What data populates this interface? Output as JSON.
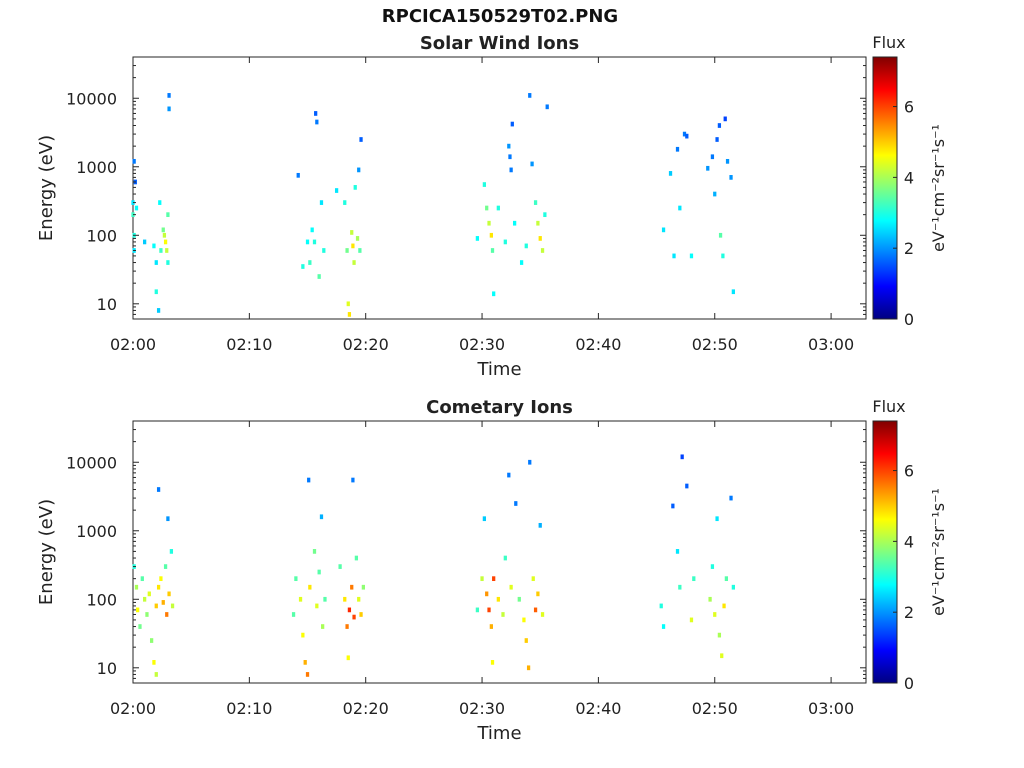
{
  "window": {
    "title": "RPCICA150529T02.PNG"
  },
  "colormap": [
    "#000080",
    "#0000ff",
    "#0080ff",
    "#00ffff",
    "#80ff80",
    "#ffff00",
    "#ff8000",
    "#ff0000",
    "#800000"
  ],
  "chart_data": [
    {
      "type": "heatmap",
      "title": "Solar Wind Ions",
      "xlabel": "Time",
      "ylabel": "Energy (eV)",
      "x_ticks": [
        "02:00",
        "02:10",
        "02:20",
        "02:30",
        "02:40",
        "02:50",
        "03:00"
      ],
      "xlim_minutes": [
        0,
        63
      ],
      "yscale": "log",
      "ylim": [
        6,
        40000
      ],
      "y_ticks": [
        "10",
        "100",
        "1000",
        "10000"
      ],
      "colorbar": {
        "title": "Flux",
        "unit_label": "eV⁻¹cm⁻²sr⁻¹s⁻¹",
        "range": [
          0,
          7.4
        ],
        "ticks": [
          "0",
          "2",
          "4",
          "6"
        ]
      },
      "cells": [
        [
          0.0,
          300,
          2.6
        ],
        [
          0.0,
          200,
          3.2
        ],
        [
          0.1,
          100,
          3.0
        ],
        [
          0.1,
          60,
          2.6
        ],
        [
          0.1,
          1200,
          1.8
        ],
        [
          0.2,
          600,
          1.6
        ],
        [
          0.3,
          250,
          2.8
        ],
        [
          1.0,
          80,
          2.4
        ],
        [
          1.8,
          70,
          2.8
        ],
        [
          2.0,
          40,
          2.6
        ],
        [
          2.0,
          15,
          3.0
        ],
        [
          2.2,
          8,
          2.4
        ],
        [
          2.3,
          300,
          2.8
        ],
        [
          2.4,
          60,
          3.2
        ],
        [
          2.6,
          120,
          3.6
        ],
        [
          2.7,
          100,
          4.2
        ],
        [
          2.8,
          80,
          4.6
        ],
        [
          2.9,
          60,
          4.2
        ],
        [
          3.0,
          200,
          3.4
        ],
        [
          3.0,
          40,
          3.0
        ],
        [
          3.1,
          11000,
          1.8
        ],
        [
          3.1,
          7000,
          2.0
        ],
        [
          14.2,
          750,
          1.8
        ],
        [
          14.6,
          35,
          3.0
        ],
        [
          15.0,
          80,
          2.8
        ],
        [
          15.2,
          40,
          3.2
        ],
        [
          15.4,
          120,
          2.8
        ],
        [
          15.6,
          80,
          3.0
        ],
        [
          15.7,
          6000,
          1.6
        ],
        [
          15.8,
          4500,
          1.8
        ],
        [
          16.0,
          25,
          3.4
        ],
        [
          16.2,
          300,
          2.6
        ],
        [
          16.4,
          60,
          3.0
        ],
        [
          17.5,
          450,
          2.6
        ],
        [
          18.2,
          300,
          3.0
        ],
        [
          18.4,
          60,
          3.6
        ],
        [
          18.5,
          10,
          4.4
        ],
        [
          18.6,
          7,
          4.8
        ],
        [
          18.8,
          110,
          4.2
        ],
        [
          18.9,
          70,
          4.8
        ],
        [
          19.0,
          40,
          4.2
        ],
        [
          19.1,
          500,
          3.0
        ],
        [
          19.3,
          90,
          4.0
        ],
        [
          19.4,
          900,
          2.0
        ],
        [
          19.5,
          60,
          3.4
        ],
        [
          19.6,
          2500,
          1.6
        ],
        [
          29.6,
          90,
          2.8
        ],
        [
          30.2,
          550,
          3.0
        ],
        [
          30.4,
          250,
          3.6
        ],
        [
          30.6,
          150,
          4.2
        ],
        [
          30.8,
          100,
          4.8
        ],
        [
          30.9,
          60,
          3.4
        ],
        [
          31.0,
          14,
          2.8
        ],
        [
          31.4,
          250,
          3.0
        ],
        [
          32.0,
          80,
          3.0
        ],
        [
          32.3,
          2000,
          2.0
        ],
        [
          32.4,
          1400,
          1.8
        ],
        [
          32.5,
          900,
          1.8
        ],
        [
          32.6,
          4200,
          1.6
        ],
        [
          32.8,
          150,
          2.8
        ],
        [
          33.4,
          40,
          2.8
        ],
        [
          33.8,
          70,
          3.0
        ],
        [
          34.1,
          11000,
          1.8
        ],
        [
          34.3,
          1100,
          2.0
        ],
        [
          34.6,
          300,
          3.2
        ],
        [
          34.8,
          150,
          4.2
        ],
        [
          35.0,
          90,
          4.8
        ],
        [
          35.2,
          60,
          4.2
        ],
        [
          35.4,
          200,
          3.0
        ],
        [
          35.6,
          7500,
          1.8
        ],
        [
          45.6,
          120,
          2.6
        ],
        [
          46.2,
          800,
          2.4
        ],
        [
          46.5,
          50,
          2.6
        ],
        [
          46.8,
          1800,
          1.8
        ],
        [
          47.0,
          250,
          2.6
        ],
        [
          47.4,
          3000,
          1.8
        ],
        [
          47.6,
          2800,
          1.6
        ],
        [
          48.0,
          50,
          2.8
        ],
        [
          49.4,
          950,
          2.0
        ],
        [
          49.8,
          1400,
          1.8
        ],
        [
          50.0,
          400,
          2.2
        ],
        [
          50.2,
          2500,
          1.6
        ],
        [
          50.4,
          4000,
          1.6
        ],
        [
          50.5,
          100,
          3.4
        ],
        [
          50.7,
          50,
          3.0
        ],
        [
          50.9,
          5000,
          1.4
        ],
        [
          51.1,
          1200,
          2.0
        ],
        [
          51.4,
          700,
          2.0
        ],
        [
          51.6,
          15,
          2.6
        ]
      ]
    },
    {
      "type": "heatmap",
      "title": "Cometary Ions",
      "xlabel": "Time",
      "ylabel": "Energy (eV)",
      "x_ticks": [
        "02:00",
        "02:10",
        "02:20",
        "02:30",
        "02:40",
        "02:50",
        "03:00"
      ],
      "xlim_minutes": [
        0,
        63
      ],
      "yscale": "log",
      "ylim": [
        6,
        40000
      ],
      "y_ticks": [
        "10",
        "100",
        "1000",
        "10000"
      ],
      "colorbar": {
        "title": "Flux",
        "unit_label": "eV⁻¹cm⁻²sr⁻¹s⁻¹",
        "range": [
          0,
          7.4
        ],
        "ticks": [
          "0",
          "2",
          "4",
          "6"
        ]
      },
      "cells": [
        [
          0.1,
          300,
          3.0
        ],
        [
          0.3,
          150,
          4.0
        ],
        [
          0.4,
          70,
          4.6
        ],
        [
          0.6,
          40,
          3.6
        ],
        [
          0.8,
          200,
          3.4
        ],
        [
          1.0,
          100,
          4.2
        ],
        [
          1.2,
          60,
          3.8
        ],
        [
          1.4,
          120,
          4.4
        ],
        [
          1.6,
          25,
          3.8
        ],
        [
          1.8,
          12,
          4.6
        ],
        [
          2.0,
          8,
          4.2
        ],
        [
          2.0,
          80,
          5.0
        ],
        [
          2.2,
          150,
          4.8
        ],
        [
          2.2,
          4000,
          1.8
        ],
        [
          2.4,
          200,
          4.6
        ],
        [
          2.6,
          90,
          5.2
        ],
        [
          2.8,
          300,
          3.4
        ],
        [
          2.9,
          60,
          5.6
        ],
        [
          3.0,
          1500,
          2.0
        ],
        [
          3.1,
          120,
          5.0
        ],
        [
          3.3,
          500,
          3.0
        ],
        [
          3.4,
          80,
          4.2
        ],
        [
          13.8,
          60,
          3.4
        ],
        [
          14.0,
          200,
          3.4
        ],
        [
          14.4,
          100,
          4.4
        ],
        [
          14.6,
          30,
          4.6
        ],
        [
          14.8,
          12,
          5.2
        ],
        [
          15.0,
          8,
          5.6
        ],
        [
          15.1,
          5500,
          1.8
        ],
        [
          15.2,
          150,
          4.8
        ],
        [
          15.6,
          500,
          3.6
        ],
        [
          15.8,
          80,
          4.4
        ],
        [
          16.0,
          250,
          3.4
        ],
        [
          16.2,
          1600,
          2.2
        ],
        [
          16.3,
          40,
          4.0
        ],
        [
          16.5,
          100,
          3.4
        ],
        [
          17.8,
          300,
          3.4
        ],
        [
          18.2,
          100,
          4.8
        ],
        [
          18.4,
          40,
          5.6
        ],
        [
          18.5,
          14,
          4.6
        ],
        [
          18.6,
          70,
          6.2
        ],
        [
          18.8,
          150,
          5.6
        ],
        [
          18.9,
          5500,
          1.8
        ],
        [
          19.0,
          55,
          6.0
        ],
        [
          19.2,
          400,
          3.4
        ],
        [
          19.4,
          100,
          4.4
        ],
        [
          19.6,
          60,
          5.0
        ],
        [
          19.8,
          150,
          3.8
        ],
        [
          29.6,
          70,
          3.2
        ],
        [
          30.0,
          200,
          4.2
        ],
        [
          30.2,
          1500,
          2.4
        ],
        [
          30.4,
          120,
          5.4
        ],
        [
          30.6,
          70,
          6.0
        ],
        [
          30.8,
          40,
          5.2
        ],
        [
          30.9,
          12,
          4.6
        ],
        [
          31.0,
          200,
          6.0
        ],
        [
          31.4,
          100,
          4.8
        ],
        [
          31.8,
          60,
          4.2
        ],
        [
          32.0,
          400,
          3.2
        ],
        [
          32.3,
          6500,
          1.8
        ],
        [
          32.5,
          150,
          4.4
        ],
        [
          32.9,
          2500,
          1.8
        ],
        [
          33.2,
          100,
          3.6
        ],
        [
          33.6,
          50,
          4.6
        ],
        [
          33.8,
          25,
          5.0
        ],
        [
          34.0,
          10,
          5.2
        ],
        [
          34.1,
          10000,
          1.8
        ],
        [
          34.4,
          200,
          4.4
        ],
        [
          34.6,
          70,
          5.8
        ],
        [
          34.8,
          120,
          5.0
        ],
        [
          35.0,
          1200,
          2.2
        ],
        [
          35.2,
          60,
          4.4
        ],
        [
          45.4,
          80,
          3.0
        ],
        [
          45.6,
          40,
          2.8
        ],
        [
          46.4,
          2300,
          1.6
        ],
        [
          46.8,
          500,
          2.6
        ],
        [
          47.0,
          150,
          3.2
        ],
        [
          47.2,
          12000,
          1.4
        ],
        [
          47.6,
          4500,
          1.6
        ],
        [
          48.0,
          50,
          4.4
        ],
        [
          48.2,
          200,
          3.2
        ],
        [
          49.6,
          100,
          4.0
        ],
        [
          49.8,
          300,
          3.0
        ],
        [
          50.0,
          60,
          4.4
        ],
        [
          50.2,
          1500,
          2.6
        ],
        [
          50.4,
          30,
          4.0
        ],
        [
          50.6,
          15,
          4.4
        ],
        [
          50.8,
          80,
          4.8
        ],
        [
          51.0,
          200,
          3.4
        ],
        [
          51.4,
          3000,
          1.8
        ],
        [
          51.6,
          150,
          3.0
        ]
      ]
    }
  ]
}
